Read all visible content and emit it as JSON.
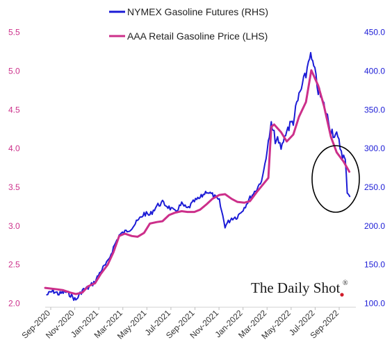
{
  "chart_data": {
    "type": "line",
    "title": "",
    "xlabel": "",
    "left_axis": {
      "label": "",
      "ticks": [
        "2.0",
        "2.5",
        "3.0",
        "3.5",
        "4.0",
        "4.5",
        "5.0",
        "5.5"
      ],
      "range": [
        1.95,
        5.55
      ],
      "color": "#cc2f8a"
    },
    "right_axis": {
      "label": "",
      "ticks": [
        "100.0",
        "150.0",
        "200.0",
        "250.0",
        "300.0",
        "350.0",
        "400.0",
        "450.0"
      ],
      "range": [
        95,
        455
      ],
      "color": "#1b1bd6"
    },
    "x_ticks": [
      "Sep-2020",
      "Nov-2020",
      "Jan-2021",
      "Mar-2021",
      "May-2021",
      "Jul-2021",
      "Sep-2021",
      "Nov-2021",
      "Jan-2022",
      "Mar-2022",
      "May-2022",
      "Jul-2022",
      "Sep-2022"
    ],
    "x_range": [
      "2020-09-01",
      "2022-10-01"
    ],
    "grid": false,
    "legend_position": "top-center",
    "series": [
      {
        "name": "NYMEX Gasoline Futures (RHS)",
        "axis": "right",
        "color": "#1b1bd6",
        "x": [
          "2020-09-05",
          "2020-09-20",
          "2020-10-05",
          "2020-10-20",
          "2020-11-02",
          "2020-11-15",
          "2020-12-01",
          "2020-12-15",
          "2021-01-01",
          "2021-01-15",
          "2021-02-01",
          "2021-02-15",
          "2021-03-01",
          "2021-03-15",
          "2021-04-01",
          "2021-04-15",
          "2021-05-01",
          "2021-05-15",
          "2021-06-01",
          "2021-06-15",
          "2021-07-01",
          "2021-07-15",
          "2021-08-01",
          "2021-08-15",
          "2021-09-01",
          "2021-09-15",
          "2021-10-01",
          "2021-10-15",
          "2021-11-01",
          "2021-11-15",
          "2021-12-01",
          "2021-12-15",
          "2022-01-01",
          "2022-01-15",
          "2022-02-01",
          "2022-02-15",
          "2022-03-01",
          "2022-03-08",
          "2022-03-15",
          "2022-04-01",
          "2022-04-15",
          "2022-05-01",
          "2022-05-15",
          "2022-06-01",
          "2022-06-10",
          "2022-06-20",
          "2022-07-01",
          "2022-07-15",
          "2022-08-01",
          "2022-08-15",
          "2022-09-01",
          "2022-09-05",
          "2022-09-10",
          "2022-09-16"
        ],
        "values": [
          111,
          116,
          112,
          115,
          111,
          104,
          117,
          120,
          128,
          142,
          153,
          172,
          188,
          192,
          198,
          206,
          216,
          214,
          226,
          230,
          224,
          218,
          228,
          222,
          232,
          236,
          245,
          240,
          232,
          200,
          210,
          212,
          224,
          236,
          248,
          262,
          308,
          330,
          316,
          300,
          324,
          336,
          368,
          395,
          422,
          405,
          375,
          355,
          325,
          315,
          290,
          285,
          245,
          238
        ]
      },
      {
        "name": "AAA Retail Gasoline Price (LHS)",
        "axis": "left",
        "color": "#cc2f8a",
        "x": [
          "2020-09-01",
          "2020-10-01",
          "2020-10-15",
          "2020-11-01",
          "2020-11-15",
          "2020-12-01",
          "2020-12-15",
          "2021-01-01",
          "2021-01-15",
          "2021-02-01",
          "2021-02-15",
          "2021-03-01",
          "2021-03-15",
          "2021-04-01",
          "2021-04-15",
          "2021-05-01",
          "2021-05-15",
          "2021-06-01",
          "2021-06-15",
          "2021-07-01",
          "2021-07-15",
          "2021-08-01",
          "2021-08-15",
          "2021-09-01",
          "2021-09-15",
          "2021-10-01",
          "2021-10-15",
          "2021-11-01",
          "2021-11-15",
          "2021-12-01",
          "2021-12-15",
          "2022-01-01",
          "2022-01-15",
          "2022-02-01",
          "2022-02-15",
          "2022-03-01",
          "2022-03-08",
          "2022-03-15",
          "2022-04-01",
          "2022-04-15",
          "2022-05-01",
          "2022-05-15",
          "2022-06-01",
          "2022-06-14",
          "2022-07-01",
          "2022-07-15",
          "2022-08-01",
          "2022-08-15",
          "2022-09-01",
          "2022-09-15"
        ],
        "values": [
          2.2,
          2.18,
          2.17,
          2.14,
          2.12,
          2.14,
          2.22,
          2.26,
          2.38,
          2.5,
          2.66,
          2.87,
          2.9,
          2.87,
          2.86,
          2.91,
          3.03,
          3.05,
          3.06,
          3.14,
          3.17,
          3.19,
          3.18,
          3.18,
          3.21,
          3.28,
          3.35,
          3.4,
          3.41,
          3.35,
          3.31,
          3.3,
          3.32,
          3.44,
          3.53,
          3.62,
          4.28,
          4.31,
          4.21,
          4.09,
          4.18,
          4.41,
          4.6,
          5.01,
          4.81,
          4.55,
          4.15,
          3.95,
          3.83,
          3.7
        ]
      }
    ],
    "annotations": [
      "circle around Aug-Sep 2022 futures drop"
    ]
  },
  "brand": {
    "text": "The Daily Shot",
    "mark": "®"
  }
}
